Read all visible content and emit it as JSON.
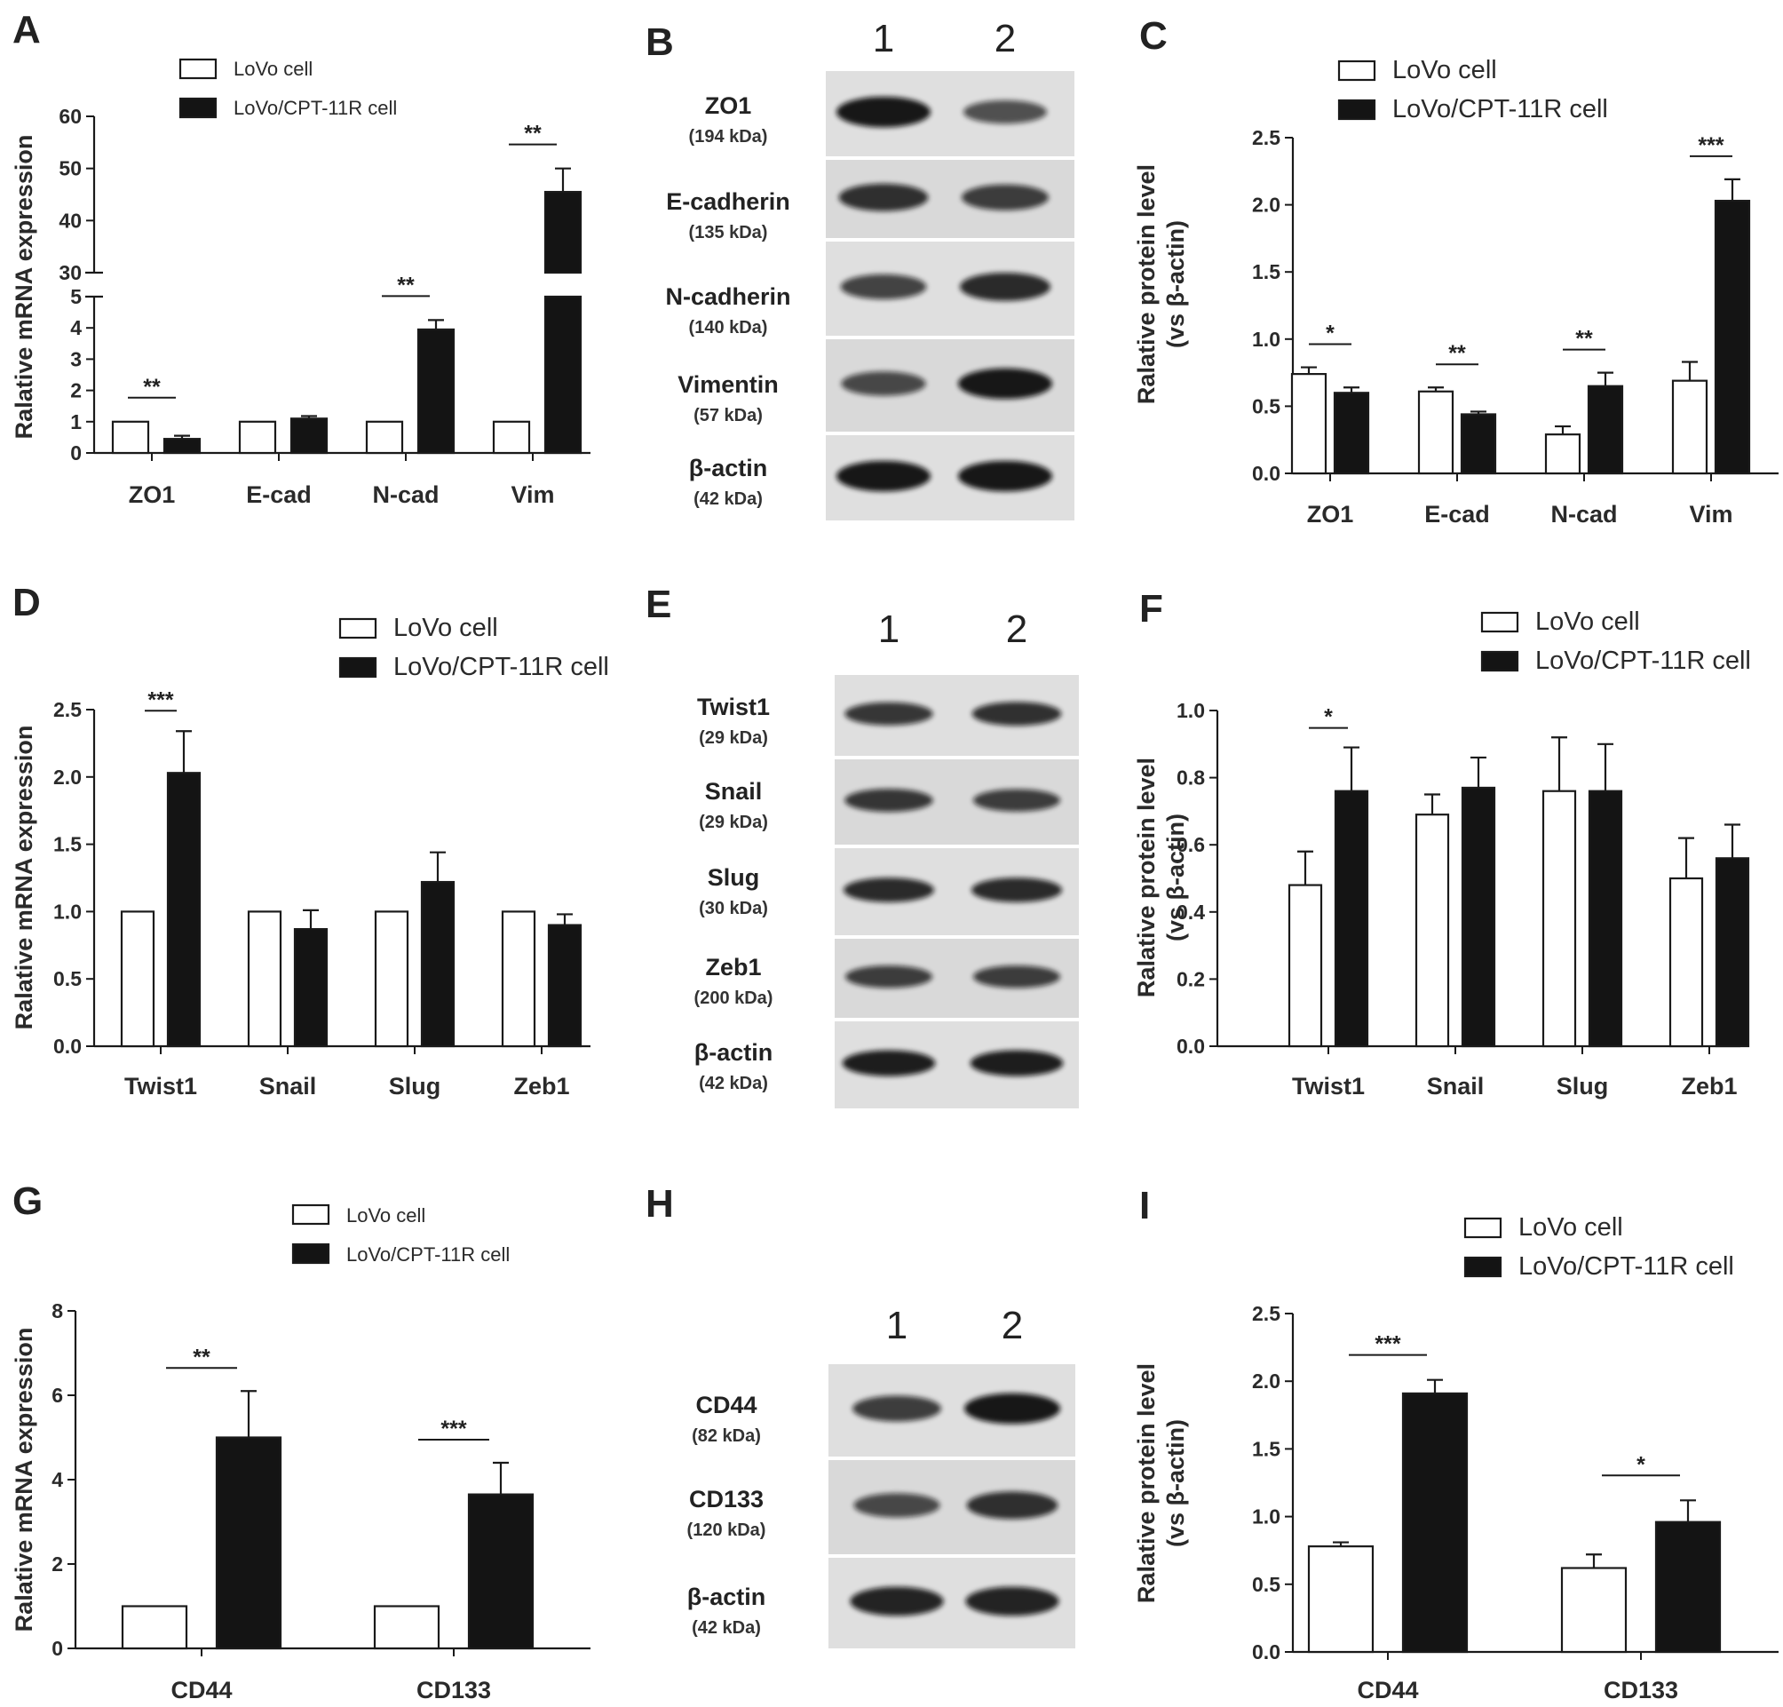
{
  "chart_data": [
    {
      "panel": "A",
      "type": "bar",
      "ylabel": "Ralative mRNA expression",
      "categories": [
        "ZO1",
        "E-cad",
        "N-cad",
        "Vim"
      ],
      "series": [
        {
          "name": "LoVo cell",
          "values": [
            1,
            1,
            1,
            1
          ],
          "errors": [
            0,
            0,
            0,
            0
          ]
        },
        {
          "name": "LoVo/CPT-11R cell",
          "values": [
            0.45,
            1.1,
            3.95,
            45.5
          ],
          "errors": [
            0.1,
            0.08,
            0.3,
            4.5
          ]
        }
      ],
      "axis_break": {
        "lower": [
          0,
          5
        ],
        "upper": [
          30,
          60
        ]
      },
      "yticks_lower": [
        "0",
        "1",
        "2",
        "3",
        "4",
        "5"
      ],
      "yticks_upper": [
        "30",
        "40",
        "50",
        "60"
      ],
      "significance": [
        {
          "category": "ZO1",
          "label": "**"
        },
        {
          "category": "N-cad",
          "label": "**"
        },
        {
          "category": "Vim",
          "label": "**"
        }
      ],
      "legend_position": "top-left"
    },
    {
      "panel": "C",
      "type": "bar",
      "ylabel": "Ralative protein level",
      "ylabel2": "(vs β-actin)",
      "categories": [
        "ZO1",
        "E-cad",
        "N-cad",
        "Vim"
      ],
      "series": [
        {
          "name": "LoVo cell",
          "values": [
            0.74,
            0.61,
            0.29,
            0.69
          ],
          "errors": [
            0.05,
            0.03,
            0.06,
            0.14
          ]
        },
        {
          "name": "LoVo/CPT-11R cell",
          "values": [
            0.6,
            0.44,
            0.65,
            2.03
          ],
          "errors": [
            0.04,
            0.02,
            0.1,
            0.16
          ]
        }
      ],
      "ylim": [
        0,
        2.5
      ],
      "yticks": [
        "0.0",
        "0.5",
        "1.0",
        "1.5",
        "2.0",
        "2.5"
      ],
      "significance": [
        {
          "category": "ZO1",
          "label": "*"
        },
        {
          "category": "E-cad",
          "label": "**"
        },
        {
          "category": "N-cad",
          "label": "**"
        },
        {
          "category": "Vim",
          "label": "***"
        }
      ],
      "legend_position": "top"
    },
    {
      "panel": "D",
      "type": "bar",
      "ylabel": "Ralative mRNA expression",
      "categories": [
        "Twist1",
        "Snail",
        "Slug",
        "Zeb1"
      ],
      "series": [
        {
          "name": "LoVo cell",
          "values": [
            1,
            1,
            1,
            1
          ],
          "errors": [
            0,
            0,
            0,
            0
          ]
        },
        {
          "name": "LoVo/CPT-11R cell",
          "values": [
            2.03,
            0.87,
            1.22,
            0.9
          ],
          "errors": [
            0.31,
            0.14,
            0.22,
            0.08
          ]
        }
      ],
      "ylim": [
        0,
        2.5
      ],
      "yticks": [
        "0.0",
        "0.5",
        "1.0",
        "1.5",
        "2.0",
        "2.5"
      ],
      "significance": [
        {
          "category": "Twist1",
          "label": "***"
        }
      ],
      "legend_position": "top-right"
    },
    {
      "panel": "F",
      "type": "bar",
      "ylabel": "Ralative protein level",
      "ylabel2": "(vs β-actin)",
      "categories": [
        "Twist1",
        "Snail",
        "Slug",
        "Zeb1"
      ],
      "series": [
        {
          "name": "LoVo cell",
          "values": [
            0.48,
            0.69,
            0.76,
            0.5
          ],
          "errors": [
            0.1,
            0.06,
            0.16,
            0.12
          ]
        },
        {
          "name": "LoVo/CPT-11R cell",
          "values": [
            0.76,
            0.77,
            0.76,
            0.56
          ],
          "errors": [
            0.13,
            0.09,
            0.14,
            0.1
          ]
        }
      ],
      "ylim": [
        0,
        1.0
      ],
      "yticks": [
        "0.0",
        "0.2",
        "0.4",
        "0.6",
        "0.8",
        "1.0"
      ],
      "significance": [
        {
          "category": "Twist1",
          "label": "*"
        }
      ],
      "legend_position": "top-right"
    },
    {
      "panel": "G",
      "type": "bar",
      "ylabel": "Ralative mRNA expression",
      "categories": [
        "CD44",
        "CD133"
      ],
      "series": [
        {
          "name": "LoVo cell",
          "values": [
            1,
            1
          ],
          "errors": [
            0,
            0
          ]
        },
        {
          "name": "LoVo/CPT-11R cell",
          "values": [
            5.0,
            3.65
          ],
          "errors": [
            1.1,
            0.75
          ]
        }
      ],
      "ylim": [
        0,
        8
      ],
      "yticks": [
        "0",
        "2",
        "4",
        "6",
        "8"
      ],
      "significance": [
        {
          "category": "CD44",
          "label": "**"
        },
        {
          "category": "CD133",
          "label": "***"
        }
      ],
      "legend_position": "top"
    },
    {
      "panel": "I",
      "type": "bar",
      "ylabel": "Ralative protein level",
      "ylabel2": "(vs β-actin)",
      "categories": [
        "CD44",
        "CD133"
      ],
      "series": [
        {
          "name": "LoVo cell",
          "values": [
            0.78,
            0.62
          ],
          "errors": [
            0.03,
            0.1
          ]
        },
        {
          "name": "LoVo/CPT-11R cell",
          "values": [
            1.91,
            0.96
          ],
          "errors": [
            0.1,
            0.16
          ]
        }
      ],
      "ylim": [
        0,
        2.5
      ],
      "yticks": [
        "0.0",
        "0.5",
        "1.0",
        "1.5",
        "2.0",
        "2.5"
      ],
      "significance": [
        {
          "category": "CD44",
          "label": "***"
        },
        {
          "category": "CD133",
          "label": "*"
        }
      ],
      "legend_position": "top-right"
    }
  ],
  "blots": [
    {
      "panel": "B",
      "lanes": [
        "1",
        "2"
      ],
      "proteins": [
        {
          "name": "ZO1",
          "kda": "(194 kDa)",
          "intensity": [
            1.0,
            0.55
          ]
        },
        {
          "name": "E-cadherin",
          "kda": "(135 kDa)",
          "intensity": [
            0.8,
            0.7
          ]
        },
        {
          "name": "N-cadherin",
          "kda": "(140 kDa)",
          "intensity": [
            0.65,
            0.85
          ]
        },
        {
          "name": "Vimentin",
          "kda": "(57 kDa)",
          "intensity": [
            0.6,
            1.0
          ]
        },
        {
          "name": "β-actin",
          "kda": "(42 kDa)",
          "intensity": [
            1.0,
            1.0
          ]
        }
      ]
    },
    {
      "panel": "E",
      "lanes": [
        "1",
        "2"
      ],
      "proteins": [
        {
          "name": "Twist1",
          "kda": "(29 kDa)",
          "intensity": [
            0.75,
            0.8
          ]
        },
        {
          "name": "Snail",
          "kda": "(29 kDa)",
          "intensity": [
            0.75,
            0.7
          ]
        },
        {
          "name": "Slug",
          "kda": "(30 kDa)",
          "intensity": [
            0.85,
            0.85
          ]
        },
        {
          "name": "Zeb1",
          "kda": "(200 kDa)",
          "intensity": [
            0.7,
            0.7
          ]
        },
        {
          "name": "β-actin",
          "kda": "(42 kDa)",
          "intensity": [
            0.95,
            0.95
          ]
        }
      ]
    },
    {
      "panel": "H",
      "lanes": [
        "1",
        "2"
      ],
      "proteins": [
        {
          "name": "CD44",
          "kda": "(82 kDa)",
          "intensity": [
            0.7,
            1.0
          ]
        },
        {
          "name": "CD133",
          "kda": "(120 kDa)",
          "intensity": [
            0.6,
            0.8
          ]
        },
        {
          "name": "β-actin",
          "kda": "(42 kDa)",
          "intensity": [
            0.9,
            0.9
          ]
        }
      ]
    }
  ]
}
